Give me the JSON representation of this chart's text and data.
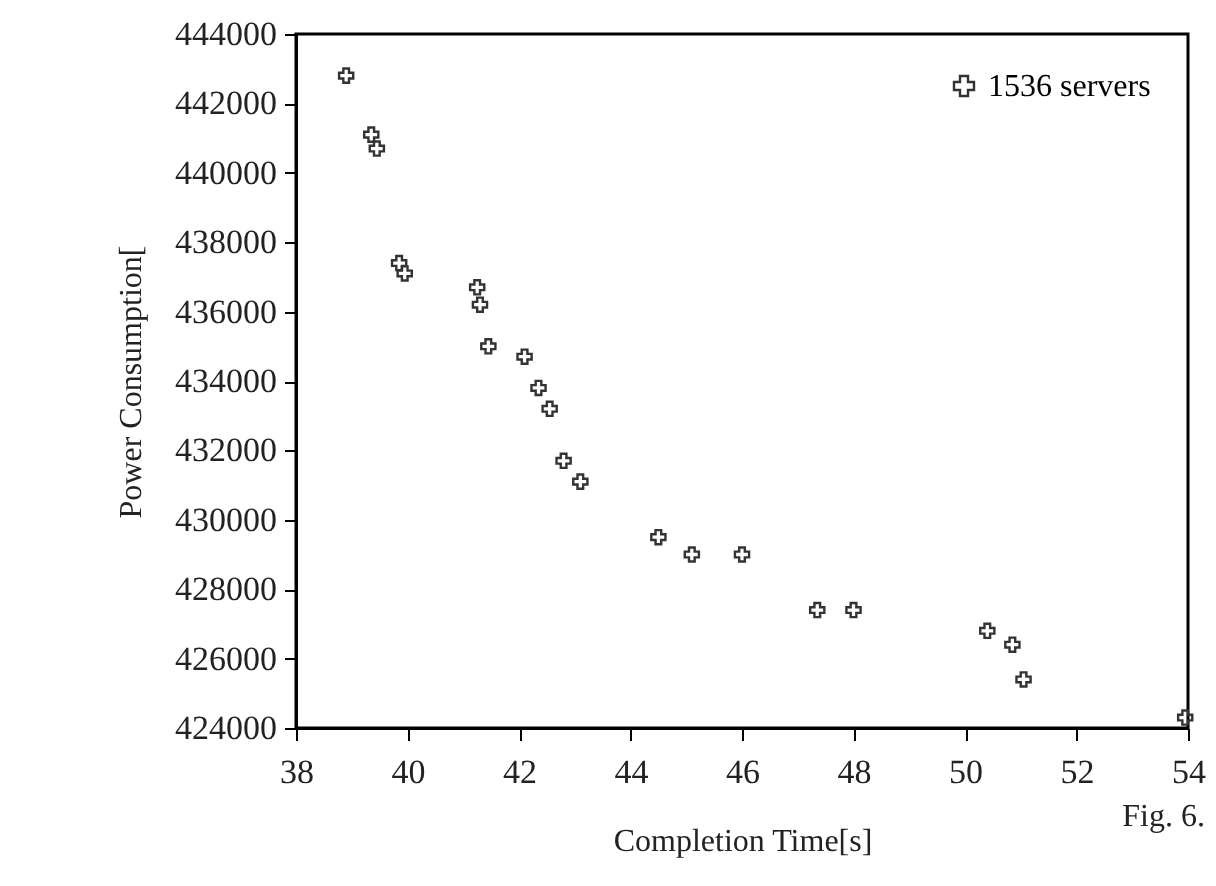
{
  "chart_data": {
    "type": "scatter",
    "xlabel": "Completion Time[s]",
    "ylabel": "Power Consumption[",
    "annotations": [
      "Fig. 6."
    ],
    "xlim": [
      38,
      54
    ],
    "xticks": [
      38,
      40,
      42,
      44,
      46,
      48,
      50,
      52,
      54
    ],
    "ylim": [
      424000,
      444000
    ],
    "yticks": [
      424000,
      426000,
      428000,
      430000,
      432000,
      434000,
      436000,
      438000,
      440000,
      442000,
      444000
    ],
    "grid": false,
    "legend": "top right",
    "marker": "cross",
    "series": [
      {
        "name": "1536 servers",
        "color": "#333333",
        "x": [
          38.9,
          39.35,
          39.45,
          39.85,
          39.95,
          41.25,
          41.3,
          41.45,
          42.1,
          42.35,
          42.55,
          42.8,
          43.1,
          44.5,
          45.1,
          46.0,
          47.35,
          48.0,
          50.4,
          50.85,
          51.05,
          53.95
        ],
        "values": [
          442800,
          441100,
          440700,
          437400,
          437100,
          436700,
          436200,
          435000,
          434700,
          433800,
          433200,
          431700,
          431100,
          429500,
          429000,
          429000,
          427400,
          427400,
          426800,
          426400,
          425400,
          424300
        ]
      }
    ]
  }
}
